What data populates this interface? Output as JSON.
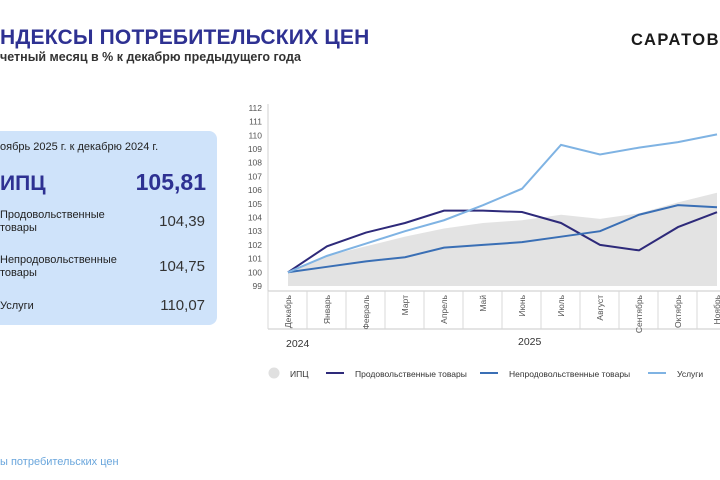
{
  "header": {
    "title": "НДЕКСЫ ПОТРЕБИТЕЛЬСКИХ ЦЕН",
    "subtitle": "четный месяц в % к декабрю предыдущего года",
    "logo": "САРАТОВС"
  },
  "panel": {
    "heading": "оябрь 2025 г. к декабрю 2024 г.",
    "main_label": "ИПЦ",
    "main_value": "105,81",
    "rows": [
      {
        "label": "Продовольственные товары",
        "value": "104,39"
      },
      {
        "label": "Непродовольственные товары",
        "value": "104,75"
      },
      {
        "label": "Услуги",
        "value": "110,07"
      }
    ]
  },
  "footer": {
    "text": "ы потребительских цен"
  },
  "chart_data": {
    "type": "line",
    "categories": [
      "Декабрь",
      "Январь",
      "Февраль",
      "Март",
      "Апрель",
      "Май",
      "Июнь",
      "Июль",
      "Август",
      "Сентябрь",
      "Октябрь",
      "Ноябрь"
    ],
    "year_labels": [
      "2024",
      "2025"
    ],
    "y_ticks": [
      99,
      100,
      101,
      102,
      103,
      104,
      105,
      106,
      107,
      108,
      109,
      110,
      111,
      112
    ],
    "ylim": [
      99,
      112
    ],
    "grid": false,
    "legend_position": "bottom",
    "series": [
      {
        "name": "ИПЦ",
        "kind": "area",
        "color": "#e3e3e3",
        "values": [
          100.0,
          101.2,
          101.9,
          102.6,
          103.2,
          103.6,
          103.8,
          104.2,
          103.9,
          104.3,
          105.1,
          105.81
        ]
      },
      {
        "name": "Продовольственные товары",
        "kind": "line",
        "color": "#2e2a7a",
        "values": [
          100.0,
          101.9,
          102.9,
          103.6,
          104.5,
          104.5,
          104.4,
          103.6,
          102.0,
          101.6,
          103.3,
          104.39
        ]
      },
      {
        "name": "Непродовольственные товары",
        "kind": "line",
        "color": "#3a6fb5",
        "values": [
          100.0,
          100.4,
          100.8,
          101.1,
          101.8,
          102.0,
          102.2,
          102.6,
          103.0,
          104.2,
          104.9,
          104.75
        ]
      },
      {
        "name": "Услуги",
        "kind": "line",
        "color": "#7fb3e3",
        "values": [
          100.0,
          101.2,
          102.1,
          103.0,
          103.8,
          104.9,
          106.1,
          109.3,
          108.6,
          109.1,
          109.5,
          110.07
        ]
      }
    ]
  }
}
